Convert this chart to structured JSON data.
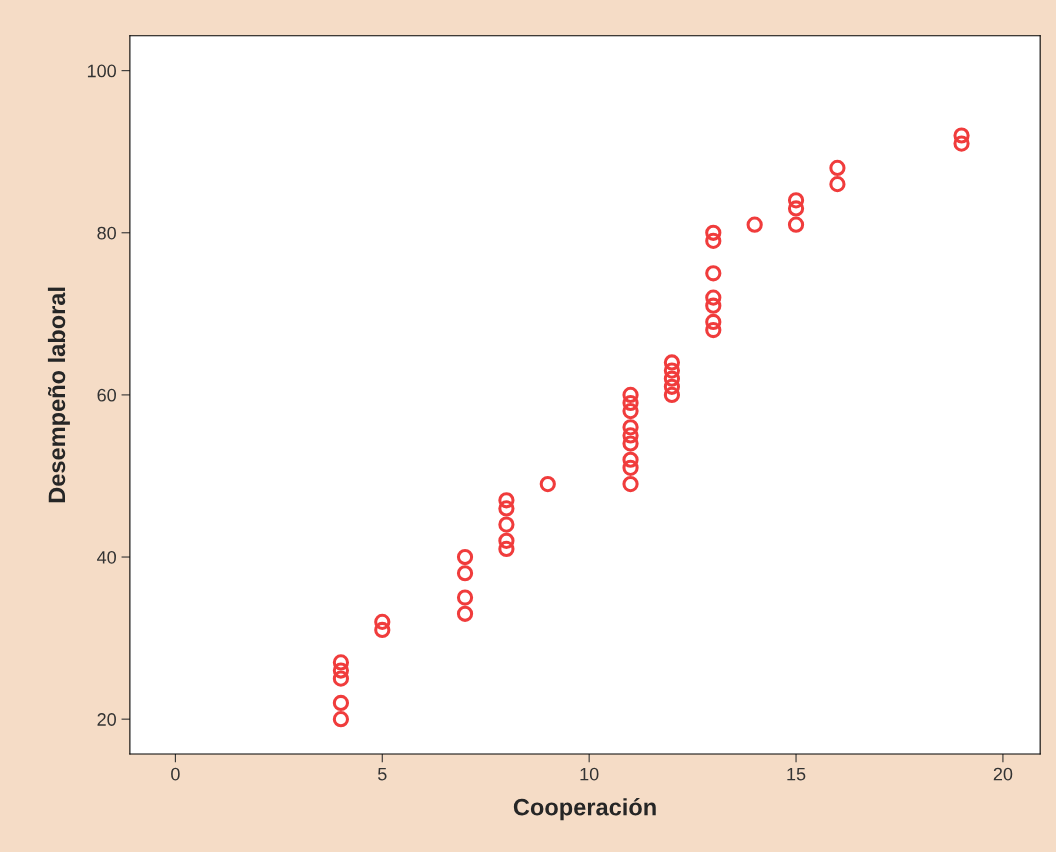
{
  "chart_data": {
    "type": "scatter",
    "xlabel": "Cooperación",
    "ylabel": "Desempeño laboral",
    "series": [
      {
        "color": "#f03c3c",
        "x": [
          4,
          4,
          4,
          4,
          4,
          5,
          5,
          7,
          7,
          7,
          7,
          8,
          8,
          8,
          8,
          8,
          9,
          11,
          11,
          11,
          11,
          11,
          11,
          11,
          11,
          11,
          12,
          12,
          12,
          12,
          12,
          13,
          13,
          13,
          13,
          13,
          13,
          13,
          14,
          15,
          15,
          15,
          16,
          16,
          19,
          19
        ],
        "values": [
          27,
          26,
          25,
          22,
          20,
          32,
          31,
          40,
          38,
          35,
          33,
          47,
          46,
          44,
          42,
          41,
          49,
          60,
          59,
          58,
          56,
          55,
          54,
          52,
          51,
          49,
          64,
          63,
          62,
          61,
          60,
          80,
          79,
          75,
          72,
          71,
          69,
          68,
          81,
          84,
          83,
          81,
          88,
          86,
          92,
          91
        ]
      }
    ],
    "xlim": [
      -1.1,
      20.9
    ],
    "ylim": [
      15.7,
      104.3
    ],
    "xticks": [
      0,
      5,
      10,
      15,
      20
    ],
    "yticks": [
      20,
      40,
      60,
      80,
      100
    ],
    "marker": "circle",
    "grid": false,
    "legend": false
  }
}
